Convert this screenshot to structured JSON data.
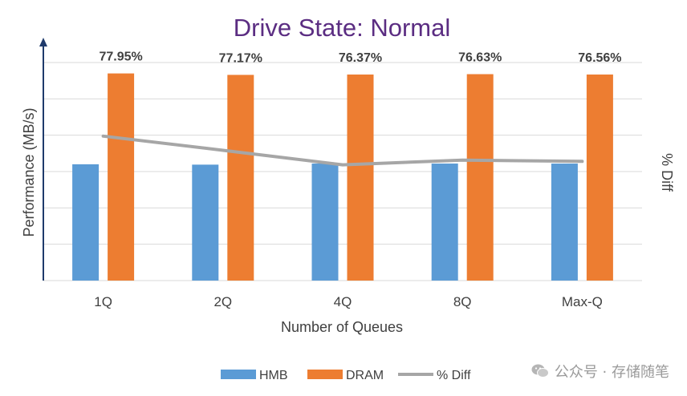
{
  "chart_data": {
    "type": "bar",
    "title": "Drive State: Normal",
    "xlabel": "Number of Queues",
    "ylabel": "Performance (MB/s)",
    "y2label": "% Diff",
    "categories": [
      "1Q",
      "2Q",
      "4Q",
      "8Q",
      "Max-Q"
    ],
    "ylim": [
      0,
      6
    ],
    "y2lim": [
      70,
      82
    ],
    "grid": true,
    "series": [
      {
        "name": "HMB",
        "type": "bar",
        "color": "#5b9bd5",
        "values": [
          3.2,
          3.19,
          3.22,
          3.22,
          3.22
        ]
      },
      {
        "name": "DRAM",
        "type": "bar",
        "color": "#ed7d31",
        "values": [
          5.7,
          5.66,
          5.67,
          5.68,
          5.67
        ]
      },
      {
        "name": "% Diff",
        "type": "line",
        "color": "#a6a6a6",
        "values": [
          77.95,
          77.17,
          76.37,
          76.63,
          76.56
        ]
      }
    ],
    "data_labels": [
      "77.95%",
      "77.17%",
      "76.37%",
      "76.63%",
      "76.56%"
    ],
    "legend_position": "bottom"
  },
  "watermark": {
    "text": "公众号 · 存储随笔",
    "icon": "wechat-icon"
  },
  "colors": {
    "title": "#5b2d82",
    "axis": "#1f3a6b",
    "grid": "#d9d9d9",
    "text": "#404040"
  }
}
